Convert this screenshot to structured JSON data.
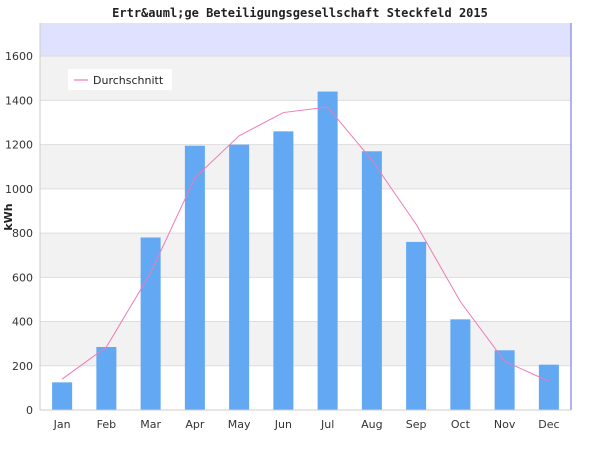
{
  "chart_data": {
    "type": "bar",
    "title": "Ertr&auml;ge Beteiligungsgesellschaft Steckfeld 2015",
    "xlabel": "",
    "ylabel": "kWh",
    "categories": [
      "Jan",
      "Feb",
      "Mar",
      "Apr",
      "May",
      "Jun",
      "Jul",
      "Aug",
      "Sep",
      "Oct",
      "Nov",
      "Dec"
    ],
    "series": [
      {
        "type": "bar",
        "values": [
          125,
          285,
          780,
          1195,
          1200,
          1260,
          1440,
          1170,
          760,
          410,
          270,
          205
        ],
        "color": "#62a8f2"
      },
      {
        "name": "Durchschnitt",
        "type": "line",
        "values": [
          140,
          285,
          620,
          1050,
          1240,
          1345,
          1370,
          1130,
          840,
          490,
          220,
          130
        ],
        "color": "#f07ab6"
      }
    ],
    "ylim": [
      0,
      1750
    ],
    "yticks": [
      0,
      200,
      400,
      600,
      800,
      1000,
      1200,
      1400,
      1600
    ],
    "grid": true,
    "legend": "top-left",
    "colors": {
      "band": "#f2f2f2",
      "top_band": "#e0e0ff",
      "grid": "#dddddd",
      "axis": "#9999ee"
    }
  }
}
